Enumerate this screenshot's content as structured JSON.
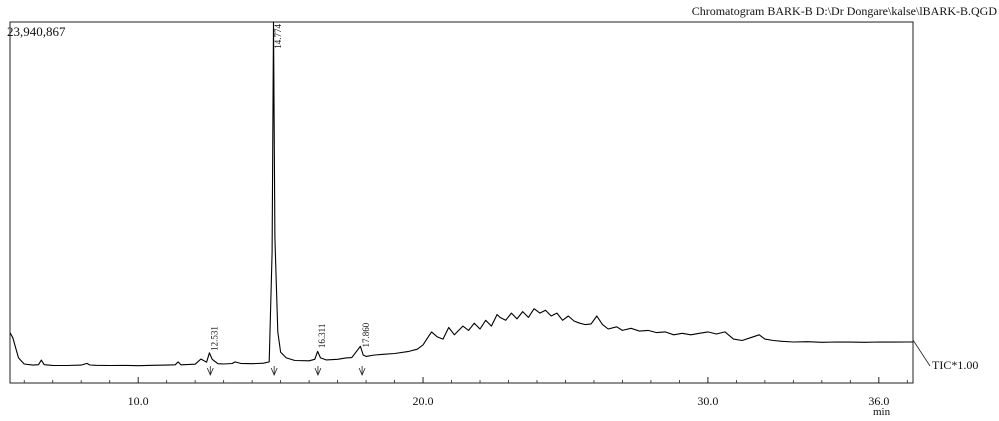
{
  "chart_data": {
    "type": "line",
    "title": "Chromatogram BARK-B D:\\Dr Dongare\\kalse\\lBARK-B.QGD",
    "y_max_label": "23,940,867",
    "trace_label": "TIC*1.00",
    "xlabel": "min",
    "ylabel": "",
    "xlim": [
      5.5,
      37.2
    ],
    "ylim": [
      0,
      23940867
    ],
    "grid": false,
    "x_ticks": [
      10.0,
      20.0,
      30.0,
      36.0
    ],
    "x_tick_labels": [
      "10.0",
      "20.0",
      "30.0",
      "36.0"
    ],
    "peak_labels": [
      {
        "x": 12.531,
        "label": "12.531"
      },
      {
        "x": 14.774,
        "label": "14.774"
      },
      {
        "x": 16.311,
        "label": "16.311"
      },
      {
        "x": 17.86,
        "label": "17.860"
      }
    ],
    "series": [
      {
        "values_unit": "intensity",
        "x": [
          5.5,
          5.6,
          5.8,
          6.0,
          6.3,
          6.5,
          6.6,
          6.7,
          7.0,
          7.5,
          8.0,
          8.2,
          8.3,
          8.5,
          9.0,
          9.5,
          10.0,
          10.5,
          11.0,
          11.3,
          11.4,
          11.5,
          12.0,
          12.2,
          12.4,
          12.5,
          12.6,
          12.8,
          13.0,
          13.3,
          13.4,
          13.6,
          14.0,
          14.4,
          14.6,
          14.7,
          14.75,
          14.8,
          14.9,
          15.0,
          15.2,
          15.5,
          16.0,
          16.2,
          16.3,
          16.4,
          16.6,
          17.0,
          17.3,
          17.5,
          17.8,
          17.9,
          18.0,
          18.3,
          18.6,
          19.0,
          19.5,
          19.8,
          20.0,
          20.2,
          20.3,
          20.5,
          20.7,
          20.9,
          21.1,
          21.4,
          21.6,
          21.8,
          22.0,
          22.2,
          22.4,
          22.6,
          22.7,
          22.9,
          23.1,
          23.3,
          23.5,
          23.7,
          23.9,
          24.1,
          24.3,
          24.5,
          24.7,
          24.9,
          25.1,
          25.3,
          25.5,
          25.7,
          25.9,
          26.1,
          26.3,
          26.5,
          26.8,
          27.0,
          27.3,
          27.6,
          27.9,
          28.2,
          28.5,
          28.8,
          29.1,
          29.4,
          29.7,
          30.0,
          30.3,
          30.6,
          30.9,
          31.2,
          31.5,
          31.8,
          32.0,
          32.3,
          32.6,
          33.0,
          33.5,
          34.0,
          34.5,
          35.0,
          35.5,
          36.0,
          36.5,
          37.0,
          37.2
        ],
        "y": [
          2450000,
          2100000,
          700000,
          280000,
          200000,
          230000,
          550000,
          230000,
          180000,
          170000,
          200000,
          320000,
          210000,
          190000,
          170000,
          180000,
          160000,
          190000,
          200000,
          220000,
          420000,
          220000,
          260000,
          620000,
          400000,
          1050000,
          600000,
          300000,
          280000,
          310000,
          420000,
          320000,
          300000,
          330000,
          420000,
          8000000,
          23940867,
          9000000,
          2500000,
          1100000,
          700000,
          520000,
          500000,
          600000,
          1150000,
          700000,
          560000,
          600000,
          700000,
          720000,
          1500000,
          900000,
          800000,
          900000,
          950000,
          1000000,
          1150000,
          1300000,
          1600000,
          2200000,
          2500000,
          2150000,
          2000000,
          2800000,
          2300000,
          2900000,
          2600000,
          3100000,
          2700000,
          3300000,
          2900000,
          3700000,
          3500000,
          3300000,
          3800000,
          3400000,
          3900000,
          3500000,
          4100000,
          3800000,
          4000000,
          3600000,
          3800000,
          3300000,
          3600000,
          3250000,
          3100000,
          3000000,
          3050000,
          3600000,
          3000000,
          2700000,
          2850000,
          2600000,
          2750000,
          2550000,
          2600000,
          2450000,
          2500000,
          2300000,
          2400000,
          2300000,
          2400000,
          2500000,
          2350000,
          2500000,
          2000000,
          1900000,
          2100000,
          2300000,
          2000000,
          1900000,
          1850000,
          1800000,
          1820000,
          1780000,
          1800000,
          1790000,
          1780000,
          1800000,
          1790000,
          1800000,
          1800000
        ]
      }
    ]
  }
}
